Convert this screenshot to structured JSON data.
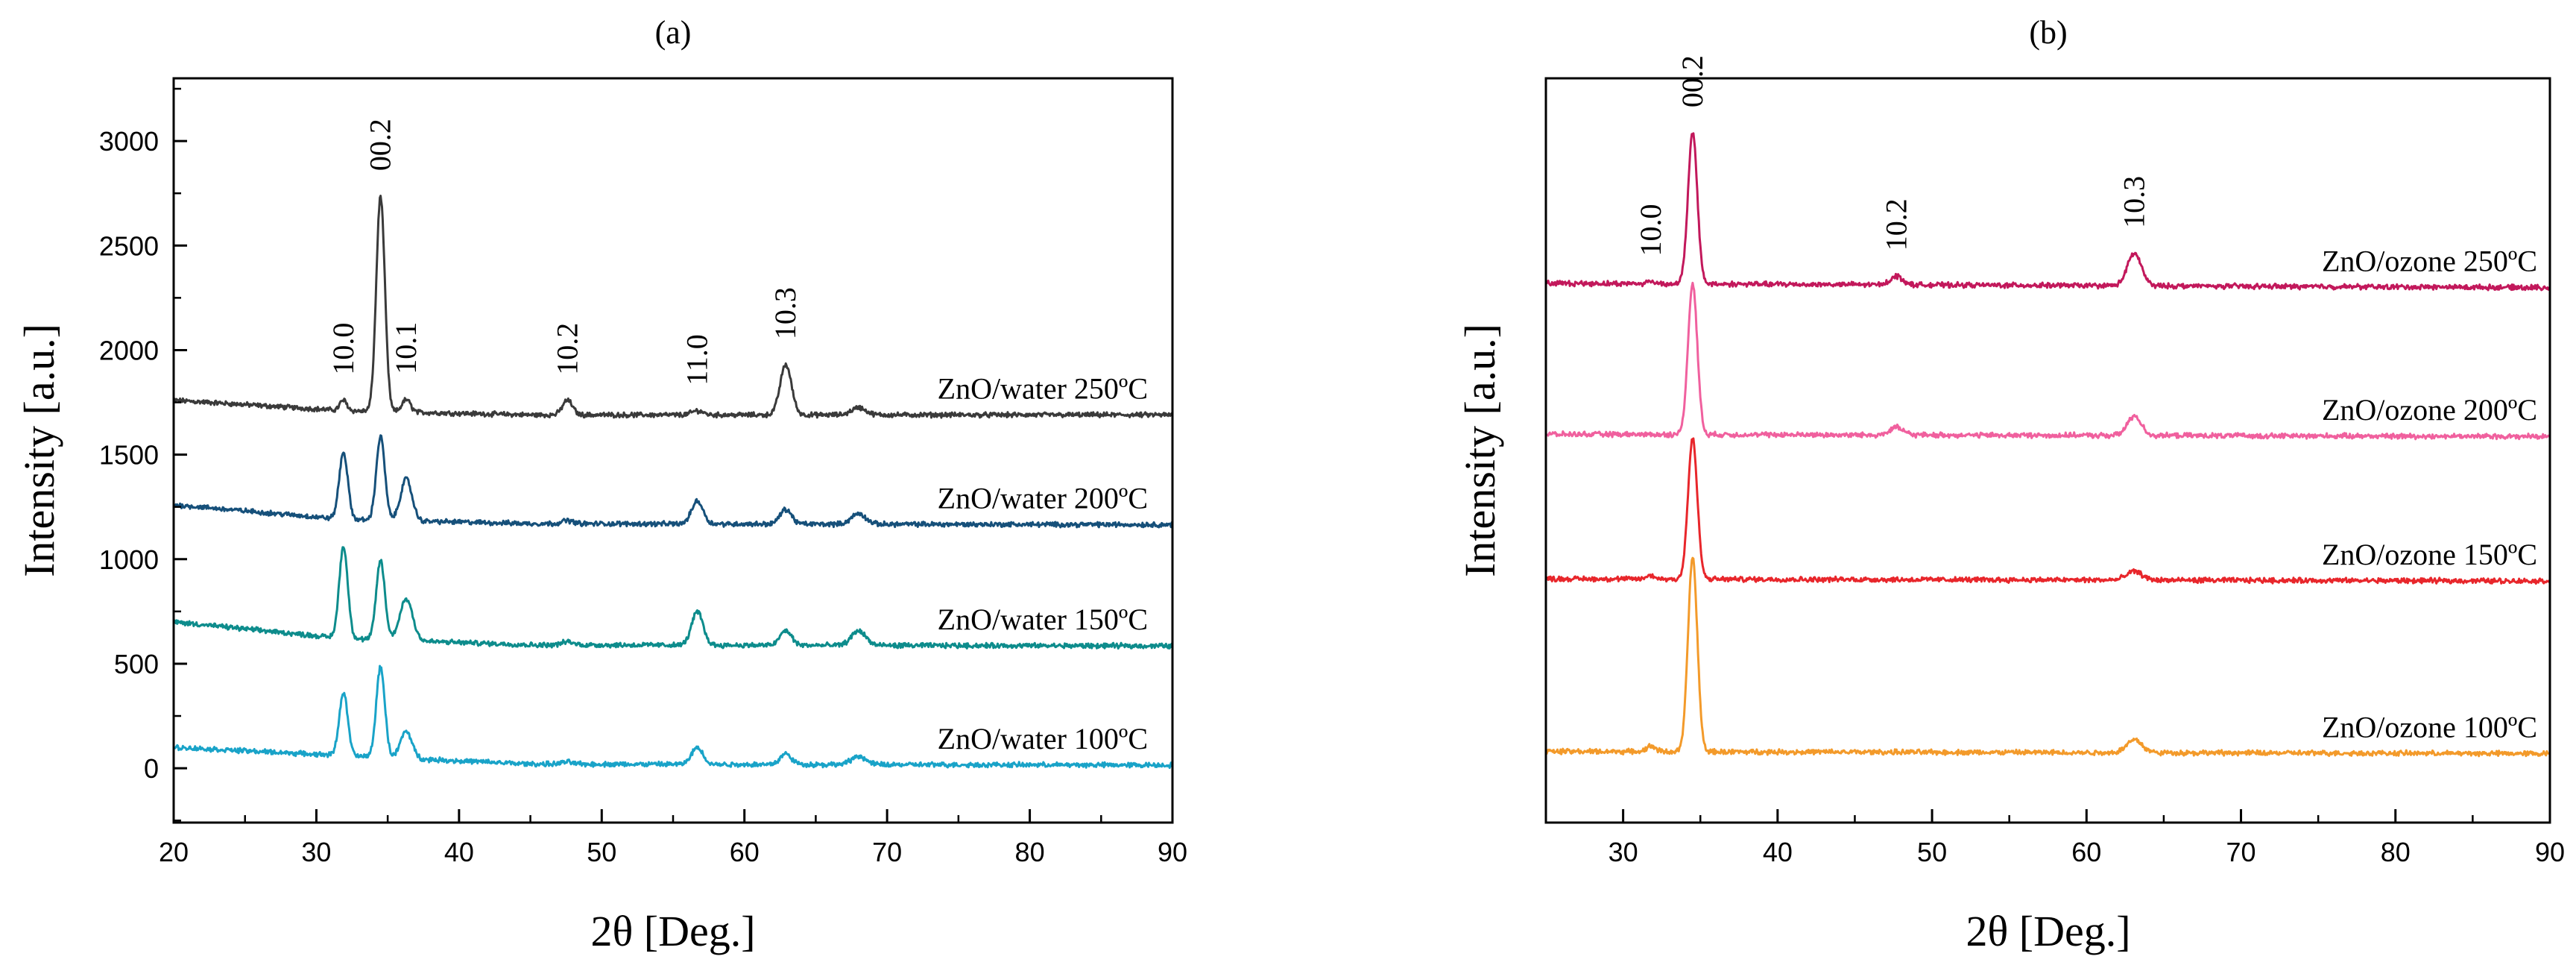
{
  "chart_data": [
    {
      "type": "line",
      "panel_label": "(a)",
      "xlabel": "2θ [Deg.]",
      "ylabel": "Intensity [a.u.]",
      "xlim": [
        20,
        90
      ],
      "ylim": [
        -260,
        3300
      ],
      "x_ticks": [
        20,
        30,
        40,
        50,
        60,
        70,
        80,
        90
      ],
      "y_ticks": [
        0,
        500,
        1000,
        1500,
        2000,
        2500,
        3000
      ],
      "peaks": [
        {
          "label": "10.0",
          "x": 31.9
        },
        {
          "label": "00.2",
          "x": 34.5
        },
        {
          "label": "10.1",
          "x": 36.3
        },
        {
          "label": "10.2",
          "x": 47.6
        },
        {
          "label": "11.0",
          "x": 56.7
        },
        {
          "label": "10.3",
          "x": 62.9
        }
      ],
      "series": [
        {
          "name": "ZnO/water 250ºC",
          "color": "#3a3a3a",
          "baseline": [
            [
              20,
              1760
            ],
            [
              32,
              1710
            ],
            [
              45,
              1690
            ],
            [
              90,
              1690
            ]
          ],
          "peaks": [
            [
              31.9,
              50,
              0.25
            ],
            [
              34.5,
              1030,
              0.3
            ],
            [
              36.3,
              60,
              0.3
            ],
            [
              47.6,
              70,
              0.35
            ],
            [
              56.7,
              20,
              0.4
            ],
            [
              62.9,
              240,
              0.4
            ],
            [
              68.0,
              35,
              0.5
            ]
          ]
        },
        {
          "name": "ZnO/water 200ºC",
          "color": "#16507a",
          "baseline": [
            [
              20,
              1260
            ],
            [
              32,
              1190
            ],
            [
              45,
              1170
            ],
            [
              90,
              1165
            ]
          ],
          "peaks": [
            [
              31.9,
              320,
              0.3
            ],
            [
              34.5,
              400,
              0.3
            ],
            [
              36.3,
              200,
              0.4
            ],
            [
              47.6,
              15,
              0.4
            ],
            [
              56.7,
              110,
              0.4
            ],
            [
              62.9,
              70,
              0.4
            ],
            [
              68.0,
              50,
              0.5
            ]
          ]
        },
        {
          "name": "ZnO/water 150ºC",
          "color": "#0d8c8c",
          "baseline": [
            [
              20,
              700
            ],
            [
              32,
              620
            ],
            [
              45,
              590
            ],
            [
              90,
              585
            ]
          ],
          "peaks": [
            [
              31.9,
              440,
              0.3
            ],
            [
              34.5,
              380,
              0.3
            ],
            [
              36.3,
              200,
              0.45
            ],
            [
              47.6,
              15,
              0.4
            ],
            [
              56.7,
              160,
              0.4
            ],
            [
              62.9,
              70,
              0.4
            ],
            [
              68.0,
              70,
              0.5
            ]
          ]
        },
        {
          "name": "ZnO/water 100ºC",
          "color": "#19a3c8",
          "baseline": [
            [
              20,
              100
            ],
            [
              32,
              60
            ],
            [
              45,
              20
            ],
            [
              90,
              15
            ]
          ],
          "peaks": [
            [
              31.9,
              300,
              0.3
            ],
            [
              34.5,
              430,
              0.3
            ],
            [
              36.3,
              130,
              0.4
            ],
            [
              47.6,
              10,
              0.4
            ],
            [
              56.7,
              80,
              0.4
            ],
            [
              62.9,
              50,
              0.4
            ],
            [
              68.0,
              40,
              0.5
            ]
          ]
        }
      ]
    },
    {
      "type": "line",
      "panel_label": "(b)",
      "xlabel": "2θ [Deg.]",
      "ylabel": "Intensity [a.u.]",
      "xlim": [
        25,
        90
      ],
      "ylim": [
        -300,
        3150
      ],
      "x_ticks": [
        30,
        40,
        50,
        60,
        70,
        80,
        90
      ],
      "peaks": [
        {
          "label": "10.0",
          "x": 31.8
        },
        {
          "label": "00.2",
          "x": 34.5
        },
        {
          "label": "10.2",
          "x": 47.7
        },
        {
          "label": "10.3",
          "x": 63.1
        }
      ],
      "series": [
        {
          "name": "ZnO/ozone 250ºC",
          "color": "#c2185b",
          "baseline": [
            [
              25,
              2200
            ],
            [
              90,
              2180
            ]
          ],
          "peaks": [
            [
              31.8,
              10,
              0.3
            ],
            [
              34.5,
              700,
              0.3
            ],
            [
              47.7,
              40,
              0.4
            ],
            [
              63.1,
              150,
              0.45
            ]
          ]
        },
        {
          "name": "ZnO/ozone 200ºC",
          "color": "#f0609e",
          "baseline": [
            [
              25,
              1500
            ],
            [
              90,
              1490
            ]
          ],
          "peaks": [
            [
              34.5,
              700,
              0.3
            ],
            [
              47.7,
              35,
              0.45
            ],
            [
              63.1,
              90,
              0.45
            ]
          ]
        },
        {
          "name": "ZnO/ozone 150ºC",
          "color": "#e8262b",
          "baseline": [
            [
              25,
              830
            ],
            [
              90,
              820
            ]
          ],
          "peaks": [
            [
              31.8,
              15,
              0.3
            ],
            [
              34.5,
              650,
              0.3
            ],
            [
              63.1,
              40,
              0.5
            ]
          ]
        },
        {
          "name": "ZnO/ozone 100ºC",
          "color": "#f39a2a",
          "baseline": [
            [
              25,
              30
            ],
            [
              90,
              20
            ]
          ],
          "peaks": [
            [
              31.8,
              25,
              0.3
            ],
            [
              34.5,
              900,
              0.3
            ],
            [
              63.1,
              60,
              0.5
            ]
          ]
        }
      ]
    }
  ]
}
